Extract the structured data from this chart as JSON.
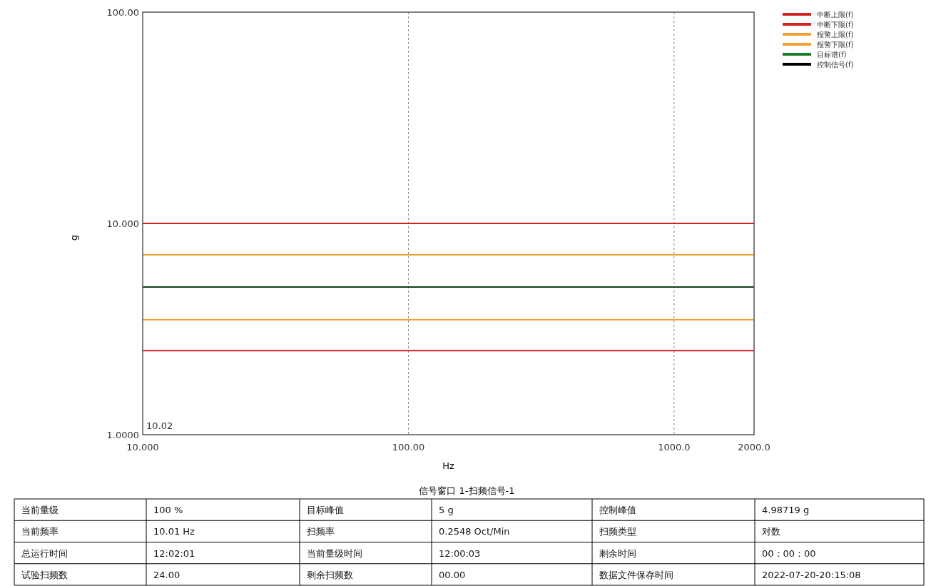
{
  "chart_data": {
    "type": "line",
    "title": "信号窗口 1-扫频信号-1",
    "xlabel": "Hz",
    "ylabel": "g",
    "log": "xy",
    "grid": "x",
    "legend": "top right",
    "marker": "none",
    "line_style": "solid",
    "xlim": [
      10,
      2000
    ],
    "ylim": [
      1,
      100
    ],
    "xticks": [
      {
        "value": 10,
        "label": "10.000"
      },
      {
        "value": 100,
        "label": "100.00"
      },
      {
        "value": 1000,
        "label": "1000.0"
      },
      {
        "value": 2000,
        "label": "2000.0"
      }
    ],
    "yticks": [
      {
        "value": 1,
        "label": "1.0000"
      },
      {
        "value": 10,
        "label": "10.000"
      },
      {
        "value": 100,
        "label": "100.00"
      }
    ],
    "x": [
      10,
      2000
    ],
    "series": [
      {
        "name": "中断上限(f)",
        "color": "#d42020",
        "values": [
          10,
          10
        ]
      },
      {
        "name": "中断下限(f)",
        "color": "#d42020",
        "values": [
          2.5,
          2.5
        ]
      },
      {
        "name": "报警上限(f)",
        "color": "#f0a030",
        "values": [
          7.1,
          7.1
        ]
      },
      {
        "name": "报警下限(f)",
        "color": "#f0a030",
        "values": [
          3.5,
          3.5
        ]
      },
      {
        "name": "目标谱(f)",
        "color": "#1a7a2a",
        "values": [
          5,
          5
        ]
      },
      {
        "name": "控制信号(f)",
        "color": "#000000",
        "values": [
          4.99,
          4.99
        ]
      }
    ],
    "annotations": [
      "10.02",
      "当前量级",
      "100 %",
      "目标峰值",
      "5 g",
      "控制峰值",
      "4.98719 g",
      "当前频率",
      "10.01 Hz",
      "扫频率",
      "0.2548 Oct/Min",
      "扫频类型",
      "对数",
      "总运行时间",
      "12:02:01",
      "当前量级时间",
      "12:00:03",
      "剩余时间",
      "00：00：00",
      "试验扫频数",
      "24.00",
      "剩余扫频数",
      "00.00",
      "数据文件保存时间",
      "2022-07-20-20:15:08"
    ]
  }
}
